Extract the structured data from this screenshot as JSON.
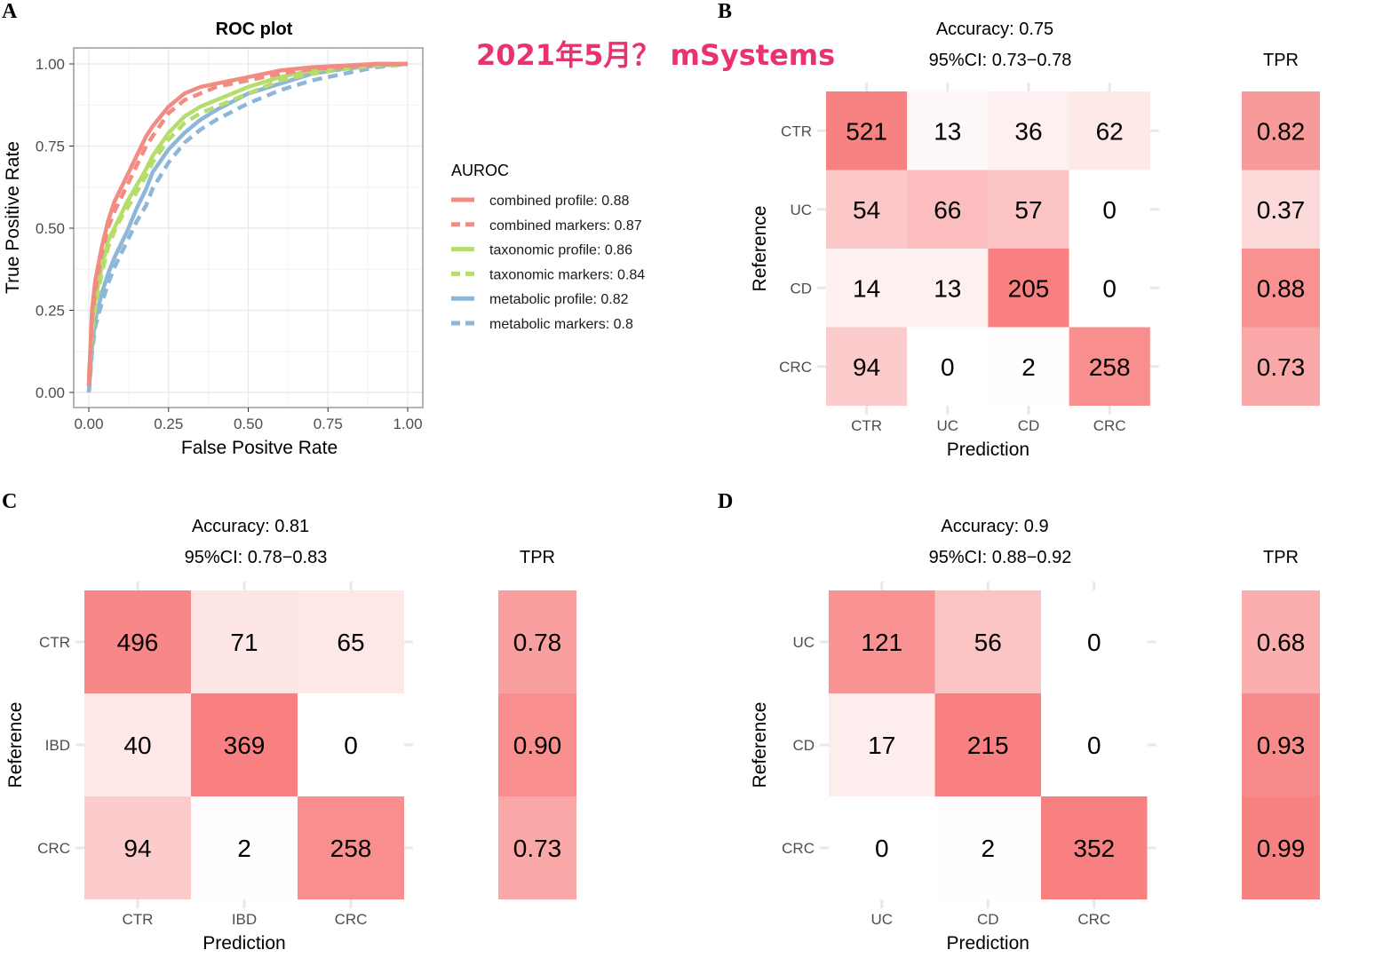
{
  "watermark": "2021年5月？ mSystems",
  "panel_labels": [
    "A",
    "B",
    "C",
    "D"
  ],
  "colors": {
    "combined": "#F28B82",
    "taxonomic": "#B5DD6B",
    "metabolic": "#8DB6D8",
    "cell_low": "#FFFFFF",
    "cell_high": "#F88080",
    "grid": "#E8E8E8",
    "panel_border": "#B3B3B3"
  },
  "chart_data": [
    {
      "panel": "A",
      "type": "line",
      "title": "ROC plot",
      "xlabel": "False Positve Rate",
      "ylabel": "True Positive Rate",
      "xlim": [
        0,
        1
      ],
      "ylim": [
        0,
        1
      ],
      "xticks": [
        "0.00",
        "0.25",
        "0.50",
        "0.75",
        "1.00"
      ],
      "yticks": [
        "0.00",
        "0.25",
        "0.50",
        "0.75",
        "1.00"
      ],
      "grid": true,
      "legend_title": "AUROC",
      "legend_position": "right",
      "series": [
        {
          "name": "combined profile: 0.88",
          "group": "combined",
          "dash": false,
          "x": [
            0,
            0.01,
            0.02,
            0.04,
            0.06,
            0.08,
            0.1,
            0.12,
            0.15,
            0.18,
            0.2,
            0.25,
            0.3,
            0.35,
            0.4,
            0.5,
            0.6,
            0.7,
            0.8,
            0.9,
            1.0
          ],
          "y": [
            0.02,
            0.25,
            0.34,
            0.44,
            0.52,
            0.58,
            0.62,
            0.66,
            0.72,
            0.78,
            0.81,
            0.87,
            0.91,
            0.93,
            0.94,
            0.96,
            0.98,
            0.99,
            0.995,
            1.0,
            1.0
          ]
        },
        {
          "name": "combined markers: 0.87",
          "group": "combined",
          "dash": true,
          "x": [
            0,
            0.01,
            0.02,
            0.04,
            0.06,
            0.08,
            0.1,
            0.12,
            0.15,
            0.18,
            0.2,
            0.25,
            0.3,
            0.35,
            0.4,
            0.5,
            0.6,
            0.7,
            0.8,
            0.9,
            1.0
          ],
          "y": [
            0.02,
            0.22,
            0.31,
            0.42,
            0.5,
            0.55,
            0.59,
            0.63,
            0.69,
            0.75,
            0.78,
            0.85,
            0.89,
            0.91,
            0.93,
            0.95,
            0.97,
            0.985,
            0.99,
            1.0,
            1.0
          ]
        },
        {
          "name": "taxonomic profile: 0.86",
          "group": "taxonomic",
          "dash": false,
          "x": [
            0,
            0.01,
            0.02,
            0.04,
            0.06,
            0.08,
            0.1,
            0.12,
            0.15,
            0.18,
            0.2,
            0.25,
            0.3,
            0.35,
            0.4,
            0.5,
            0.6,
            0.7,
            0.8,
            0.9,
            1.0
          ],
          "y": [
            0.05,
            0.2,
            0.28,
            0.38,
            0.46,
            0.5,
            0.54,
            0.58,
            0.63,
            0.68,
            0.72,
            0.79,
            0.84,
            0.87,
            0.89,
            0.93,
            0.96,
            0.98,
            0.99,
            1.0,
            1.0
          ]
        },
        {
          "name": "taxonomic markers: 0.84",
          "group": "taxonomic",
          "dash": true,
          "x": [
            0,
            0.01,
            0.02,
            0.04,
            0.06,
            0.08,
            0.1,
            0.12,
            0.15,
            0.18,
            0.2,
            0.25,
            0.3,
            0.35,
            0.4,
            0.5,
            0.6,
            0.7,
            0.8,
            0.9,
            1.0
          ],
          "y": [
            0.04,
            0.18,
            0.26,
            0.36,
            0.44,
            0.49,
            0.53,
            0.56,
            0.61,
            0.66,
            0.7,
            0.77,
            0.82,
            0.85,
            0.87,
            0.91,
            0.95,
            0.97,
            0.985,
            0.995,
            1.0
          ]
        },
        {
          "name": "metabolic profile: 0.82",
          "group": "metabolic",
          "dash": false,
          "x": [
            0,
            0.01,
            0.02,
            0.04,
            0.06,
            0.08,
            0.1,
            0.12,
            0.15,
            0.18,
            0.2,
            0.25,
            0.3,
            0.35,
            0.4,
            0.5,
            0.6,
            0.7,
            0.8,
            0.9,
            1.0
          ],
          "y": [
            0.0,
            0.14,
            0.22,
            0.3,
            0.36,
            0.41,
            0.45,
            0.49,
            0.56,
            0.62,
            0.67,
            0.74,
            0.79,
            0.83,
            0.86,
            0.91,
            0.94,
            0.97,
            0.985,
            0.995,
            1.0
          ]
        },
        {
          "name": "metabolic markers: 0.8",
          "group": "metabolic",
          "dash": true,
          "x": [
            0,
            0.01,
            0.02,
            0.04,
            0.06,
            0.08,
            0.1,
            0.12,
            0.15,
            0.18,
            0.2,
            0.25,
            0.3,
            0.35,
            0.4,
            0.5,
            0.6,
            0.7,
            0.8,
            0.9,
            1.0
          ],
          "y": [
            0.0,
            0.12,
            0.2,
            0.27,
            0.33,
            0.38,
            0.42,
            0.46,
            0.52,
            0.57,
            0.62,
            0.7,
            0.76,
            0.8,
            0.83,
            0.88,
            0.92,
            0.95,
            0.97,
            0.99,
            1.0
          ]
        }
      ]
    },
    {
      "panel": "B",
      "type": "heatmap",
      "accuracy": "Accuracy: 0.75",
      "ci": "95%CI: 0.73−0.78",
      "tpr_title": "TPR",
      "ylabel": "Reference",
      "xlabel": "Prediction",
      "rows": [
        "CTR",
        "UC",
        "CD",
        "CRC"
      ],
      "cols": [
        "CTR",
        "UC",
        "CD",
        "CRC"
      ],
      "matrix": [
        [
          521,
          13,
          36,
          62
        ],
        [
          54,
          66,
          57,
          0
        ],
        [
          14,
          13,
          205,
          0
        ],
        [
          94,
          0,
          2,
          258
        ]
      ],
      "tpr": [
        "0.82",
        "0.37",
        "0.88",
        "0.73"
      ]
    },
    {
      "panel": "C",
      "type": "heatmap",
      "accuracy": "Accuracy: 0.81",
      "ci": "95%CI: 0.78−0.83",
      "tpr_title": "TPR",
      "ylabel": "Reference",
      "xlabel": "Prediction",
      "rows": [
        "CTR",
        "IBD",
        "CRC"
      ],
      "cols": [
        "CTR",
        "IBD",
        "CRC"
      ],
      "matrix": [
        [
          496,
          71,
          65
        ],
        [
          40,
          369,
          0
        ],
        [
          94,
          2,
          258
        ]
      ],
      "tpr": [
        "0.78",
        "0.90",
        "0.73"
      ]
    },
    {
      "panel": "D",
      "type": "heatmap",
      "accuracy": "Accuracy: 0.9",
      "ci": "95%CI: 0.88−0.92",
      "tpr_title": "TPR",
      "ylabel": "Reference",
      "xlabel": "Prediction",
      "rows": [
        "UC",
        "CD",
        "CRC"
      ],
      "cols": [
        "UC",
        "CD",
        "CRC"
      ],
      "matrix": [
        [
          121,
          56,
          0
        ],
        [
          17,
          215,
          0
        ],
        [
          0,
          2,
          352
        ]
      ],
      "tpr": [
        "0.68",
        "0.93",
        "0.99"
      ]
    }
  ]
}
